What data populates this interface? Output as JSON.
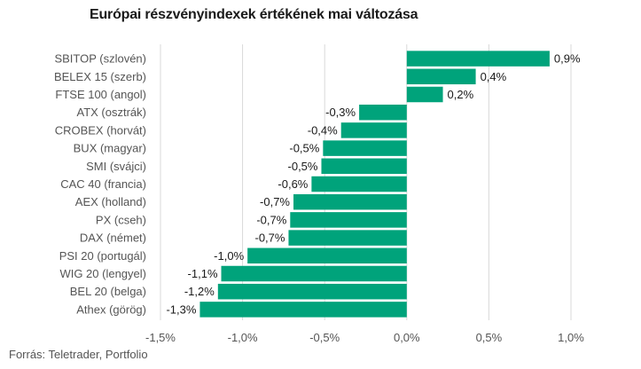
{
  "title": "Európai részvényindexek értékének mai változása",
  "source": "Forrás: Teletrader, Portfolio",
  "colors": {
    "bar": "#00a37b",
    "grid": "#d9d9d9"
  },
  "chart_data": {
    "type": "bar",
    "orientation": "horizontal",
    "categories": [
      "SBITOP (szlovén)",
      "BELEX 15 (szerb)",
      "FTSE 100 (angol)",
      "ATX (osztrák)",
      "CROBEX (horvát)",
      "BUX (magyar)",
      "SMI (svájci)",
      "CAC 40 (francia)",
      "AEX (holland)",
      "PX (cseh)",
      "DAX (német)",
      "PSI 20 (portugál)",
      "WIG 20 (lengyel)",
      "BEL 20 (belga)",
      "Athex (görög)"
    ],
    "values": [
      0.87,
      0.42,
      0.22,
      -0.29,
      -0.4,
      -0.51,
      -0.52,
      -0.58,
      -0.69,
      -0.71,
      -0.72,
      -0.97,
      -1.13,
      -1.15,
      -1.26
    ],
    "data_labels": [
      "0,9%",
      "0,4%",
      "0,2%",
      "-0,3%",
      "-0,4%",
      "-0,5%",
      "-0,5%",
      "-0,6%",
      "-0,7%",
      "-0,7%",
      "-0,7%",
      "-1,0%",
      "-1,1%",
      "-1,2%",
      "-1,3%"
    ],
    "xlim": [
      -1.5,
      1.0
    ],
    "xticks": [
      -1.5,
      -1.0,
      -0.5,
      0.0,
      0.5,
      1.0
    ],
    "xtick_labels": [
      "-1,5%",
      "-1,0%",
      "-0,5%",
      "0,0%",
      "0,5%",
      "1,0%"
    ],
    "grid": true,
    "legend": "none"
  }
}
